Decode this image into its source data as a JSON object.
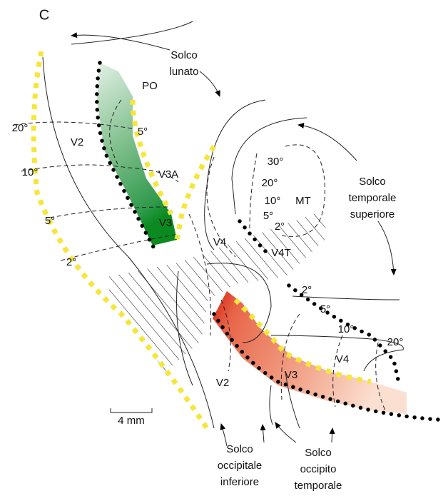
{
  "panel_label": "C",
  "labels": [
    [
      "Solco",
      "lunato"
    ],
    [
      "PO"
    ],
    [
      "20°"
    ],
    [
      "V2"
    ],
    [
      "5°"
    ],
    [
      "10°"
    ],
    [
      "V3A"
    ],
    [
      "5°"
    ],
    [
      "V3"
    ],
    [
      "2°"
    ],
    [
      "30°"
    ],
    [
      "20°"
    ],
    [
      "10°"
    ],
    [
      "MT"
    ],
    [
      "5°"
    ],
    [
      "2°"
    ],
    [
      "V4"
    ],
    [
      "V4T"
    ],
    [
      "Solco",
      "temporale",
      "superiore"
    ],
    [
      "2°"
    ],
    [
      "5°"
    ],
    [
      "10°"
    ],
    [
      "20°"
    ],
    [
      "V4"
    ],
    [
      "V3"
    ],
    [
      "V2"
    ],
    [
      "4 mm"
    ],
    [
      "Solco",
      "occipitale",
      "inferiore"
    ],
    [
      "Solco",
      "occipito",
      "temporale"
    ]
  ]
}
